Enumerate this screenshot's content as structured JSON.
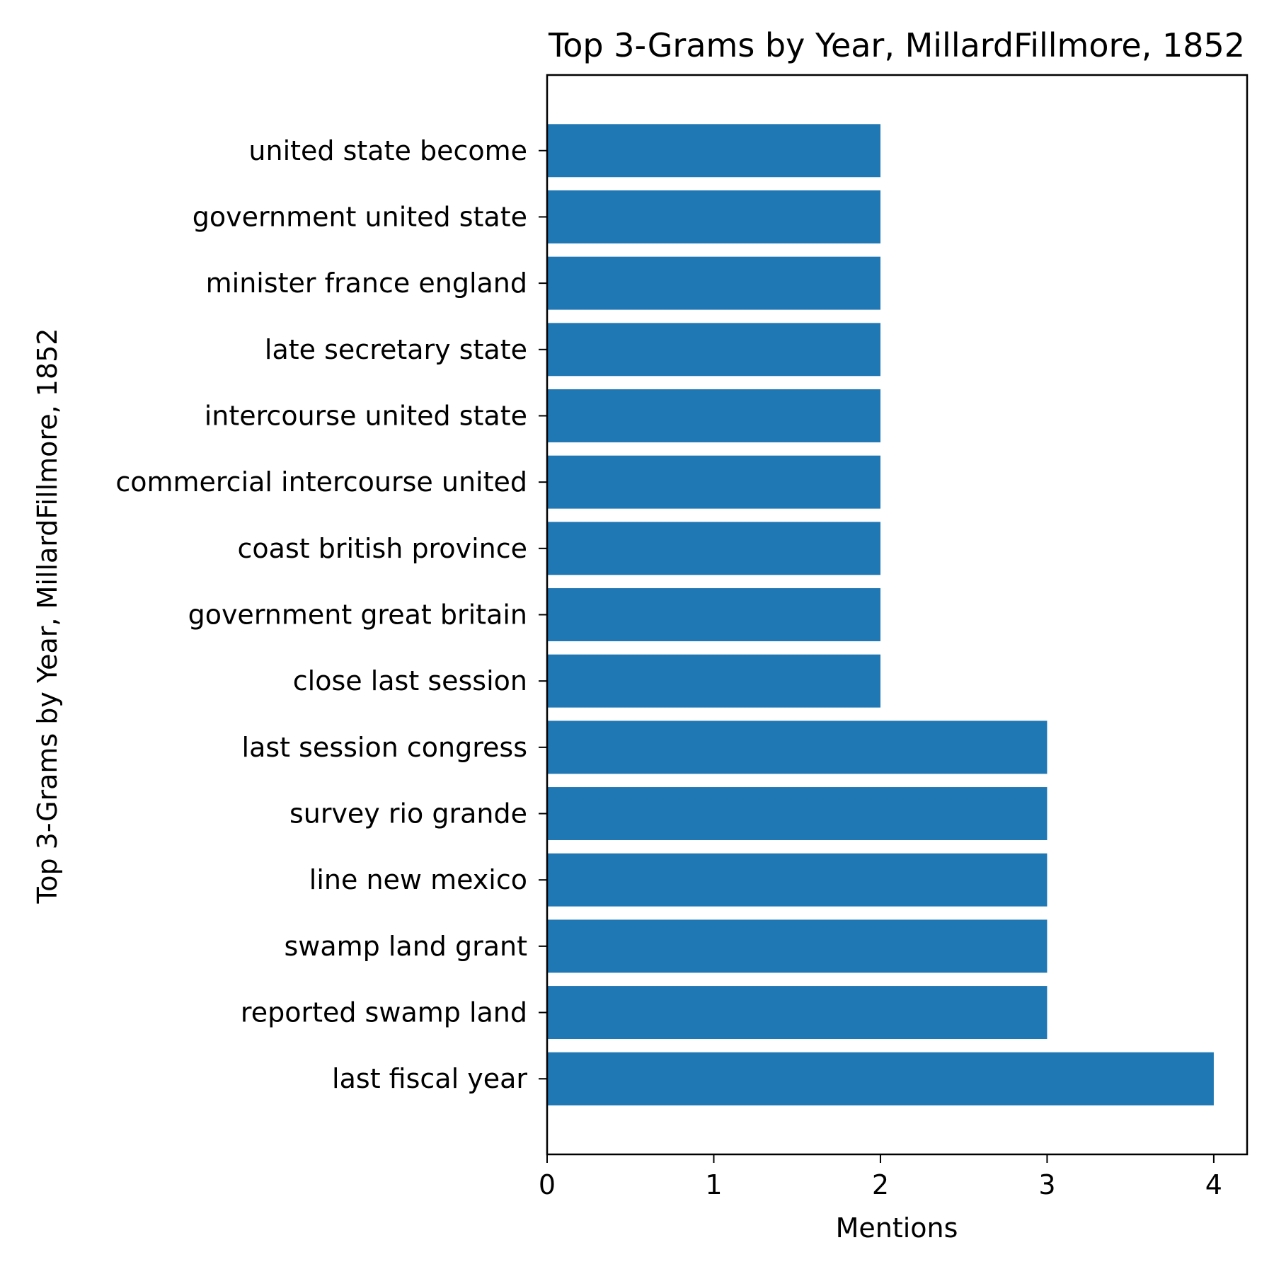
{
  "chart_data": {
    "type": "bar",
    "orientation": "horizontal",
    "title": "Top 3-Grams by Year, MillardFillmore, 1852",
    "xlabel": "Mentions",
    "ylabel": "Top 3-Grams by Year, MillardFillmore, 1852",
    "xlim": [
      0,
      4.2
    ],
    "x_ticks": [
      0,
      1,
      2,
      3,
      4
    ],
    "grid": false,
    "legend": "none",
    "bar_color": "#1f77b4",
    "categories": [
      "last fiscal year",
      "reported swamp land",
      "swamp land grant",
      "line new mexico",
      "survey rio grande",
      "last session congress",
      "close last session",
      "government great britain",
      "coast british province",
      "commercial intercourse united",
      "intercourse united state",
      "late secretary state",
      "minister france england",
      "government united state",
      "united state become"
    ],
    "values": [
      4,
      3,
      3,
      3,
      3,
      3,
      2,
      2,
      2,
      2,
      2,
      2,
      2,
      2,
      2
    ]
  }
}
